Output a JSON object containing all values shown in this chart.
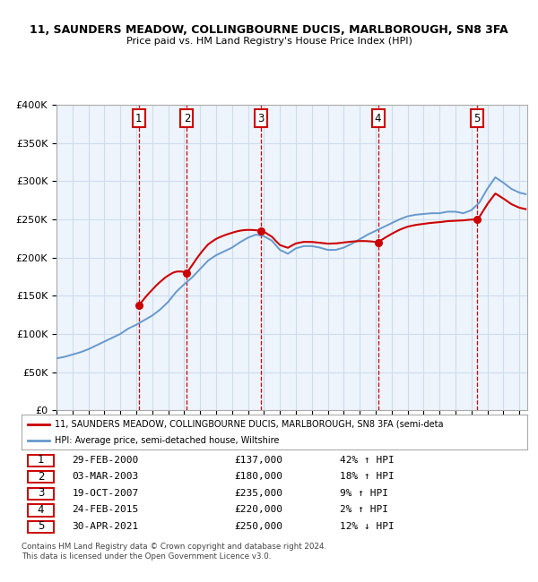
{
  "title1": "11, SAUNDERS MEADOW, COLLINGBOURNE DUCIS, MARLBOROUGH, SN8 3FA",
  "title2": "Price paid vs. HM Land Registry's House Price Index (HPI)",
  "legend1": "11, SAUNDERS MEADOW, COLLINGBOURNE DUCIS, MARLBOROUGH, SN8 3FA (semi-deta",
  "legend2": "HPI: Average price, semi-detached house, Wiltshire",
  "footer": "Contains HM Land Registry data © Crown copyright and database right 2024.\nThis data is licensed under the Open Government Licence v3.0.",
  "sales": [
    {
      "label": "1",
      "date_num": 2000.16,
      "price": 137000
    },
    {
      "label": "2",
      "date_num": 2003.17,
      "price": 180000
    },
    {
      "label": "3",
      "date_num": 2007.8,
      "price": 235000
    },
    {
      "label": "4",
      "date_num": 2015.15,
      "price": 220000
    },
    {
      "label": "5",
      "date_num": 2021.33,
      "price": 250000
    }
  ],
  "sale_dates_text": [
    "29-FEB-2000",
    "03-MAR-2003",
    "19-OCT-2007",
    "24-FEB-2015",
    "30-APR-2021"
  ],
  "sale_prices_text": [
    "£137,000",
    "£180,000",
    "£235,000",
    "£220,000",
    "£250,000"
  ],
  "sale_notes_text": [
    "42% ↑ HPI",
    "18% ↑ HPI",
    "9% ↑ HPI",
    "2% ↑ HPI",
    "12% ↓ HPI"
  ],
  "hpi_color": "#6699cc",
  "price_color": "#cc0000",
  "vline_color": "#cc0000",
  "marker_box_color": "#cc0000",
  "grid_color": "#ccddee",
  "bg_color": "#eef4fb",
  "ylim": [
    0,
    400000
  ],
  "xlim_start": 1995.0,
  "xlim_end": 2024.5,
  "hpi_x": [
    1995.0,
    1995.5,
    1996.0,
    1996.5,
    1997.0,
    1997.5,
    1998.0,
    1998.5,
    1999.0,
    1999.5,
    2000.0,
    2000.5,
    2001.0,
    2001.5,
    2002.0,
    2002.5,
    2003.0,
    2003.5,
    2004.0,
    2004.5,
    2005.0,
    2005.5,
    2006.0,
    2006.5,
    2007.0,
    2007.5,
    2008.0,
    2008.5,
    2009.0,
    2009.5,
    2010.0,
    2010.5,
    2011.0,
    2011.5,
    2012.0,
    2012.5,
    2013.0,
    2013.5,
    2014.0,
    2014.5,
    2015.0,
    2015.5,
    2016.0,
    2016.5,
    2017.0,
    2017.5,
    2018.0,
    2018.5,
    2019.0,
    2019.5,
    2020.0,
    2020.5,
    2021.0,
    2021.5,
    2022.0,
    2022.5,
    2023.0,
    2023.5,
    2024.0,
    2024.4
  ],
  "hpi_y": [
    68000,
    70000,
    73000,
    76000,
    80000,
    85000,
    90000,
    95000,
    100000,
    107000,
    112000,
    118000,
    124000,
    132000,
    142000,
    155000,
    165000,
    174000,
    185000,
    196000,
    203000,
    208000,
    213000,
    220000,
    226000,
    230000,
    228000,
    222000,
    210000,
    205000,
    212000,
    215000,
    215000,
    213000,
    210000,
    210000,
    213000,
    218000,
    224000,
    230000,
    235000,
    240000,
    245000,
    250000,
    254000,
    256000,
    257000,
    258000,
    258000,
    260000,
    260000,
    258000,
    262000,
    272000,
    290000,
    305000,
    298000,
    290000,
    285000,
    283000
  ]
}
